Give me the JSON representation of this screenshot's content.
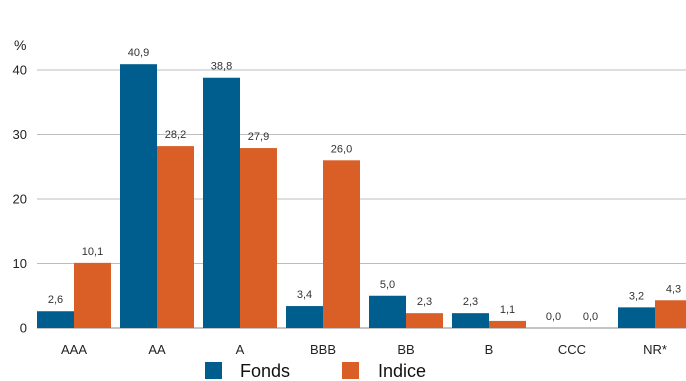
{
  "chart_data": {
    "type": "bar",
    "ylabel": "%",
    "ylim": [
      0,
      40
    ],
    "yticks": [
      0,
      10,
      20,
      30,
      40
    ],
    "grid": true,
    "legend_position": "bottom-center",
    "categories": [
      "AAA",
      "AA",
      "A",
      "BBB",
      "BB",
      "B",
      "CCC",
      "NR*"
    ],
    "series": [
      {
        "name": "Fonds",
        "color": "#005e8f",
        "values": [
          2.6,
          40.9,
          38.8,
          3.4,
          5.0,
          2.3,
          0.0,
          3.2
        ],
        "labels": [
          "2,6",
          "40,9",
          "38,8",
          "3,4",
          "5,0",
          "2,3",
          "0,0",
          "3,2"
        ]
      },
      {
        "name": "Indice",
        "color": "#d95f27",
        "values": [
          10.1,
          28.2,
          27.9,
          26.0,
          2.3,
          1.1,
          0.0,
          4.3
        ],
        "labels": [
          "10,1",
          "28,2",
          "27,9",
          "26,0",
          "2,3",
          "1,1",
          "0,0",
          "4,3"
        ]
      }
    ]
  }
}
